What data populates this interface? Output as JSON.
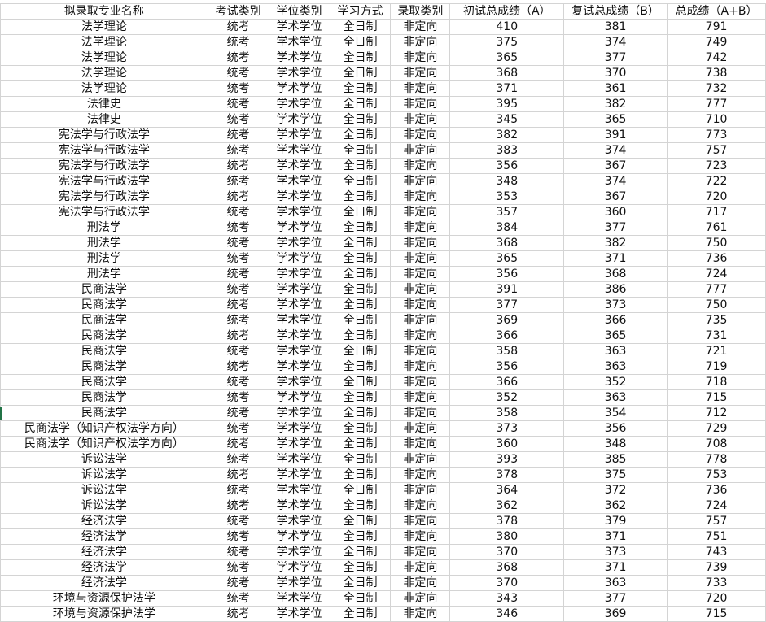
{
  "headers": [
    "拟录取专业名称",
    "考试类别",
    "学位类别",
    "学习方式",
    "录取类别",
    "初试总成绩（A）",
    "复试总成绩（B）",
    "总成绩（A+B）"
  ],
  "rows": [
    [
      "法学理论",
      "统考",
      "学术学位",
      "全日制",
      "非定向",
      "410",
      "381",
      "791"
    ],
    [
      "法学理论",
      "统考",
      "学术学位",
      "全日制",
      "非定向",
      "375",
      "374",
      "749"
    ],
    [
      "法学理论",
      "统考",
      "学术学位",
      "全日制",
      "非定向",
      "365",
      "377",
      "742"
    ],
    [
      "法学理论",
      "统考",
      "学术学位",
      "全日制",
      "非定向",
      "368",
      "370",
      "738"
    ],
    [
      "法学理论",
      "统考",
      "学术学位",
      "全日制",
      "非定向",
      "371",
      "361",
      "732"
    ],
    [
      "法律史",
      "统考",
      "学术学位",
      "全日制",
      "非定向",
      "395",
      "382",
      "777"
    ],
    [
      "法律史",
      "统考",
      "学术学位",
      "全日制",
      "非定向",
      "345",
      "365",
      "710"
    ],
    [
      "宪法学与行政法学",
      "统考",
      "学术学位",
      "全日制",
      "非定向",
      "382",
      "391",
      "773"
    ],
    [
      "宪法学与行政法学",
      "统考",
      "学术学位",
      "全日制",
      "非定向",
      "383",
      "374",
      "757"
    ],
    [
      "宪法学与行政法学",
      "统考",
      "学术学位",
      "全日制",
      "非定向",
      "356",
      "367",
      "723"
    ],
    [
      "宪法学与行政法学",
      "统考",
      "学术学位",
      "全日制",
      "非定向",
      "348",
      "374",
      "722"
    ],
    [
      "宪法学与行政法学",
      "统考",
      "学术学位",
      "全日制",
      "非定向",
      "353",
      "367",
      "720"
    ],
    [
      "宪法学与行政法学",
      "统考",
      "学术学位",
      "全日制",
      "非定向",
      "357",
      "360",
      "717"
    ],
    [
      "刑法学",
      "统考",
      "学术学位",
      "全日制",
      "非定向",
      "384",
      "377",
      "761"
    ],
    [
      "刑法学",
      "统考",
      "学术学位",
      "全日制",
      "非定向",
      "368",
      "382",
      "750"
    ],
    [
      "刑法学",
      "统考",
      "学术学位",
      "全日制",
      "非定向",
      "365",
      "371",
      "736"
    ],
    [
      "刑法学",
      "统考",
      "学术学位",
      "全日制",
      "非定向",
      "356",
      "368",
      "724"
    ],
    [
      "民商法学",
      "统考",
      "学术学位",
      "全日制",
      "非定向",
      "391",
      "386",
      "777"
    ],
    [
      "民商法学",
      "统考",
      "学术学位",
      "全日制",
      "非定向",
      "377",
      "373",
      "750"
    ],
    [
      "民商法学",
      "统考",
      "学术学位",
      "全日制",
      "非定向",
      "369",
      "366",
      "735"
    ],
    [
      "民商法学",
      "统考",
      "学术学位",
      "全日制",
      "非定向",
      "366",
      "365",
      "731"
    ],
    [
      "民商法学",
      "统考",
      "学术学位",
      "全日制",
      "非定向",
      "358",
      "363",
      "721"
    ],
    [
      "民商法学",
      "统考",
      "学术学位",
      "全日制",
      "非定向",
      "356",
      "363",
      "719"
    ],
    [
      "民商法学",
      "统考",
      "学术学位",
      "全日制",
      "非定向",
      "366",
      "352",
      "718"
    ],
    [
      "民商法学",
      "统考",
      "学术学位",
      "全日制",
      "非定向",
      "352",
      "363",
      "715"
    ],
    [
      "民商法学",
      "统考",
      "学术学位",
      "全日制",
      "非定向",
      "358",
      "354",
      "712"
    ],
    [
      "民商法学（知识产权法学方向）",
      "统考",
      "学术学位",
      "全日制",
      "非定向",
      "373",
      "356",
      "729"
    ],
    [
      "民商法学（知识产权法学方向）",
      "统考",
      "学术学位",
      "全日制",
      "非定向",
      "360",
      "348",
      "708"
    ],
    [
      "诉讼法学",
      "统考",
      "学术学位",
      "全日制",
      "非定向",
      "393",
      "385",
      "778"
    ],
    [
      "诉讼法学",
      "统考",
      "学术学位",
      "全日制",
      "非定向",
      "378",
      "375",
      "753"
    ],
    [
      "诉讼法学",
      "统考",
      "学术学位",
      "全日制",
      "非定向",
      "364",
      "372",
      "736"
    ],
    [
      "诉讼法学",
      "统考",
      "学术学位",
      "全日制",
      "非定向",
      "362",
      "362",
      "724"
    ],
    [
      "经济法学",
      "统考",
      "学术学位",
      "全日制",
      "非定向",
      "378",
      "379",
      "757"
    ],
    [
      "经济法学",
      "统考",
      "学术学位",
      "全日制",
      "非定向",
      "380",
      "371",
      "751"
    ],
    [
      "经济法学",
      "统考",
      "学术学位",
      "全日制",
      "非定向",
      "370",
      "373",
      "743"
    ],
    [
      "经济法学",
      "统考",
      "学术学位",
      "全日制",
      "非定向",
      "368",
      "371",
      "739"
    ],
    [
      "经济法学",
      "统考",
      "学术学位",
      "全日制",
      "非定向",
      "370",
      "363",
      "733"
    ],
    [
      "环境与资源保护法学",
      "统考",
      "学术学位",
      "全日制",
      "非定向",
      "343",
      "377",
      "720"
    ],
    [
      "环境与资源保护法学",
      "统考",
      "学术学位",
      "全日制",
      "非定向",
      "346",
      "369",
      "715"
    ]
  ]
}
